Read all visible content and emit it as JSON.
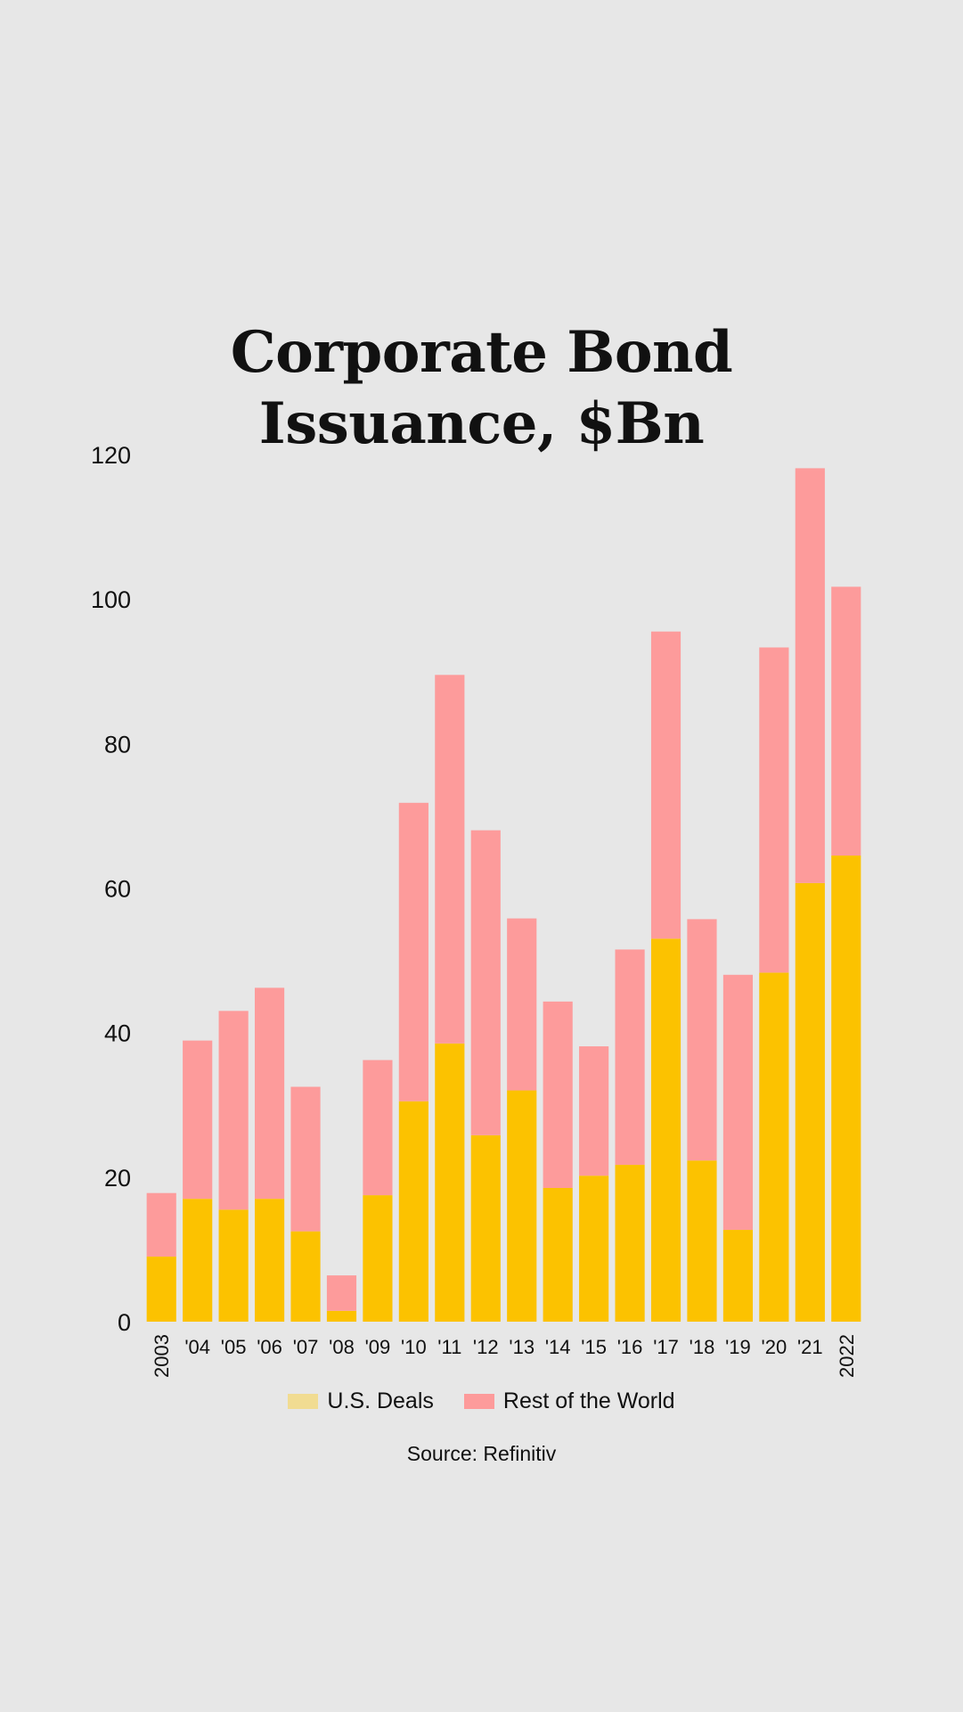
{
  "chart_data": {
    "type": "bar",
    "stacked": true,
    "title_lines": [
      "Corporate Bond",
      "Issuance, $Bn"
    ],
    "categories": [
      "2003",
      "'04",
      "'05",
      "'06",
      "'07",
      "'08",
      "'09",
      "'10",
      "'11",
      "'12",
      "'13",
      "'14",
      "'15",
      "'16",
      "'17",
      "'18",
      "'19",
      "'20",
      "'21",
      "2022"
    ],
    "rotated_tick_labels": [
      "2003",
      "2022"
    ],
    "series": [
      {
        "name": "U.S. Deals",
        "bar_color": "#fcc200",
        "legend_color": "#f1dc92",
        "values": [
          9,
          17,
          15.5,
          17,
          12.5,
          1.5,
          17.5,
          30.5,
          38.5,
          25.8,
          32,
          18.5,
          20.2,
          21.7,
          53,
          22.3,
          12.7,
          48.3,
          60.7,
          64.5
        ]
      },
      {
        "name": "Rest of the World",
        "bar_color": "#fd9b9b",
        "legend_color": "#fd9b9b",
        "values": [
          8.8,
          21.9,
          27.5,
          29.2,
          20,
          4.9,
          18.7,
          41.3,
          51,
          42.2,
          23.8,
          25.8,
          17.9,
          29.8,
          42.5,
          33.4,
          35.3,
          45,
          57.4,
          37.2
        ]
      }
    ],
    "yticks": [
      0,
      20,
      40,
      60,
      80,
      100,
      120
    ],
    "ylim": [
      0,
      120
    ],
    "xlabel": "",
    "ylabel": "",
    "grid": false,
    "legend": "bottom"
  },
  "source": "Source: Refinitiv",
  "colors": {
    "background": "#e7e7e7",
    "text": "#111111"
  }
}
